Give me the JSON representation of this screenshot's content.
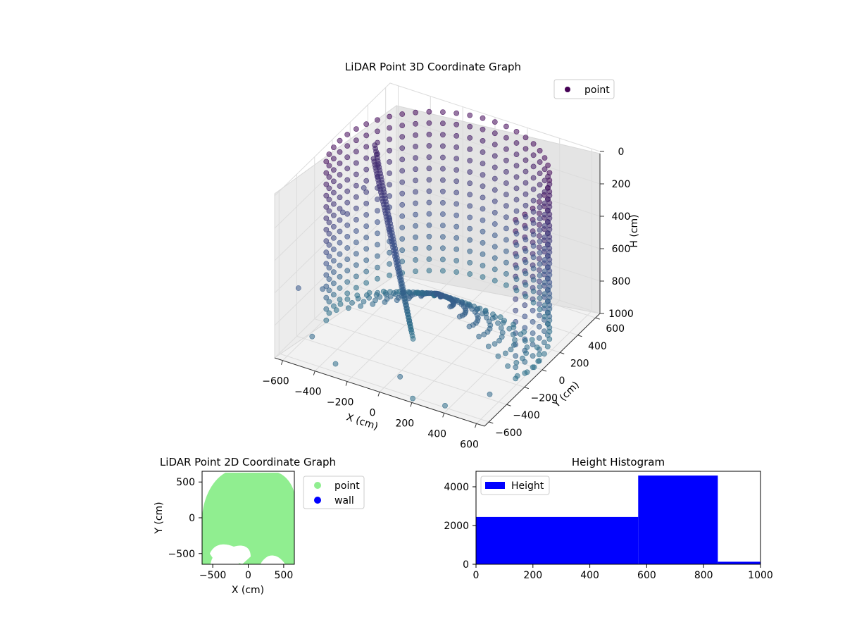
{
  "figure": {
    "plot3d": {
      "title": "LiDAR Point 3D Coordinate Graph",
      "legend_label": "point",
      "xlabel": "X (cm)",
      "ylabel": "Y (cm)",
      "zlabel": "H (cm)"
    },
    "plot2d": {
      "title": "LiDAR Point 2D Coordinate Graph",
      "xlabel": "X (cm)",
      "ylabel": "Y (cm)",
      "legend": [
        "point",
        "wall"
      ]
    },
    "hist": {
      "title": "Height Histogram",
      "legend_label": "Height"
    }
  },
  "chart_data": [
    {
      "type": "scatter",
      "title": "LiDAR Point 3D Coordinate Graph",
      "xlabel": "X (cm)",
      "ylabel": "Y (cm)",
      "zlabel": "H (cm)",
      "xlim": [
        -650,
        650
      ],
      "ylim": [
        -650,
        650
      ],
      "zlim": [
        1000,
        0
      ],
      "xticks": [
        -600,
        -400,
        -200,
        0,
        200,
        400,
        600
      ],
      "yticks": [
        -600,
        -400,
        -200,
        0,
        200,
        400,
        600
      ],
      "zticks": [
        0,
        200,
        400,
        600,
        800,
        1000
      ],
      "series": [
        {
          "name": "point",
          "color": "#440154",
          "colormap": "viridis"
        }
      ],
      "legend_position": "top-right",
      "grid": true,
      "description_shape": "cylindrical wall of points, radius ~600 cm, from H 0 down to ~1000, with a ramp/structure on the left"
    },
    {
      "type": "scatter",
      "title": "LiDAR Point 2D Coordinate Graph",
      "xlabel": "X (cm)",
      "ylabel": "Y (cm)",
      "xlim": [
        -650,
        650
      ],
      "ylim": [
        -650,
        650
      ],
      "xticks": [
        -500,
        0,
        500
      ],
      "yticks": [
        -500,
        0,
        500
      ],
      "series": [
        {
          "name": "point",
          "color": "#90ee90"
        },
        {
          "name": "wall",
          "color": "#0000ff"
        }
      ],
      "legend_position": "outside-right"
    },
    {
      "type": "bar",
      "title": "Height Histogram",
      "xlim": [
        0,
        1000
      ],
      "ylim": [
        0,
        4800
      ],
      "xticks": [
        0,
        200,
        400,
        600,
        800,
        1000
      ],
      "yticks": [
        0,
        2000,
        4000
      ],
      "bins": [
        [
          0,
          570
        ],
        [
          570,
          850
        ],
        [
          850,
          1000
        ]
      ],
      "values": [
        2440,
        4580,
        130
      ],
      "series": [
        {
          "name": "Height",
          "color": "#0000ff"
        }
      ],
      "legend_position": "top-left"
    }
  ]
}
